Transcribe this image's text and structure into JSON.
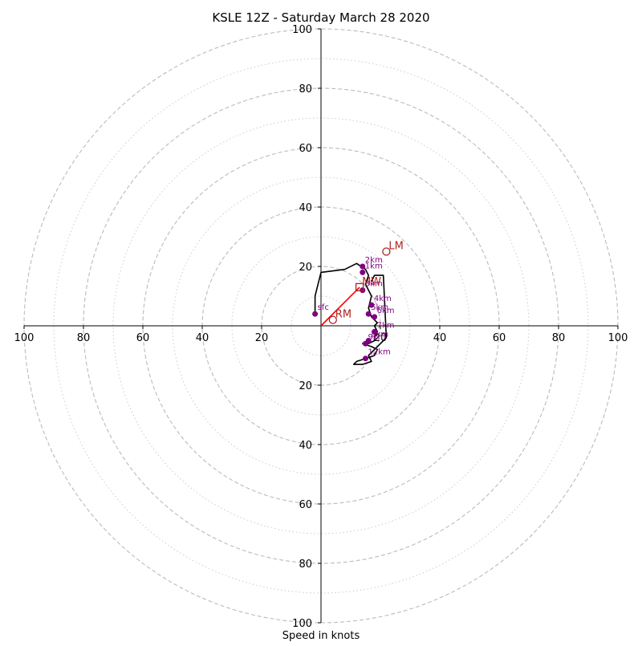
{
  "chart_data": {
    "type": "hodograph",
    "title": "KSLE 12Z - Saturday March 28 2020",
    "xlabel": "Speed in knots",
    "ring_max": 100,
    "major_rings": [
      20,
      40,
      60,
      80,
      100
    ],
    "minor_rings": [
      10,
      30,
      50,
      70,
      90
    ],
    "tick_labels": {
      "top": [
        "20",
        "40",
        "60",
        "80",
        "100"
      ],
      "bottom": [
        "20",
        "40",
        "60",
        "80",
        "100"
      ],
      "left": [
        "20",
        "40",
        "60",
        "80",
        "100"
      ],
      "right": [
        "20",
        "40",
        "60",
        "80",
        "100"
      ]
    },
    "hodograph_line": [
      [
        -2,
        4
      ],
      [
        -2,
        10
      ],
      [
        0,
        18
      ],
      [
        8,
        19
      ],
      [
        12,
        21
      ],
      [
        15,
        19
      ],
      [
        16,
        17
      ],
      [
        15,
        14
      ],
      [
        17,
        10
      ],
      [
        16,
        6
      ],
      [
        17,
        3
      ],
      [
        18,
        2
      ],
      [
        19,
        1
      ],
      [
        18,
        0
      ],
      [
        19,
        -2
      ],
      [
        18,
        -4
      ],
      [
        18,
        -5
      ],
      [
        16,
        -6
      ],
      [
        14,
        -6
      ],
      [
        17,
        -7
      ],
      [
        19,
        -8
      ],
      [
        18,
        -10
      ],
      [
        15,
        -11
      ],
      [
        12,
        -12
      ],
      [
        11,
        -13
      ],
      [
        14,
        -13
      ],
      [
        17,
        -12
      ],
      [
        16,
        -10
      ],
      [
        18,
        -8
      ],
      [
        19,
        -7
      ],
      [
        20,
        -6
      ],
      [
        21,
        -5
      ],
      [
        22,
        -4
      ],
      [
        21,
        17
      ],
      [
        18,
        17
      ],
      [
        17,
        15
      ]
    ],
    "height_points": [
      {
        "label": "sfc",
        "u": -2,
        "v": 4
      },
      {
        "label": "1km",
        "u": 14,
        "v": 18
      },
      {
        "label": "2km",
        "u": 14,
        "v": 20
      },
      {
        "label": "3km",
        "u": 14,
        "v": 12
      },
      {
        "label": "4km",
        "u": 17,
        "v": 7
      },
      {
        "label": "5km",
        "u": 16,
        "v": 4
      },
      {
        "label": "6km",
        "u": 18,
        "v": 3
      },
      {
        "label": "7km",
        "u": 18,
        "v": -2
      },
      {
        "label": "8km",
        "u": 16,
        "v": -5
      },
      {
        "label": "9km",
        "u": 15,
        "v": -6
      },
      {
        "label": "12km",
        "u": 15,
        "v": -11
      }
    ],
    "storm_motions": [
      {
        "label": "RM",
        "u": 4,
        "v": 2,
        "marker": "circle"
      },
      {
        "label": "LM",
        "u": 22,
        "v": 25,
        "marker": "circle"
      },
      {
        "label": "MW",
        "u": 13,
        "v": 13,
        "marker": "square"
      }
    ],
    "mean_wind_vector": {
      "u": 13,
      "v": 13
    }
  },
  "colors": {
    "hodograph_line": "#000000",
    "height_points": "#800080",
    "storm_motion": "#b22222",
    "mean_wind_vector": "#ff0000",
    "rings": "#bbbbbb"
  }
}
